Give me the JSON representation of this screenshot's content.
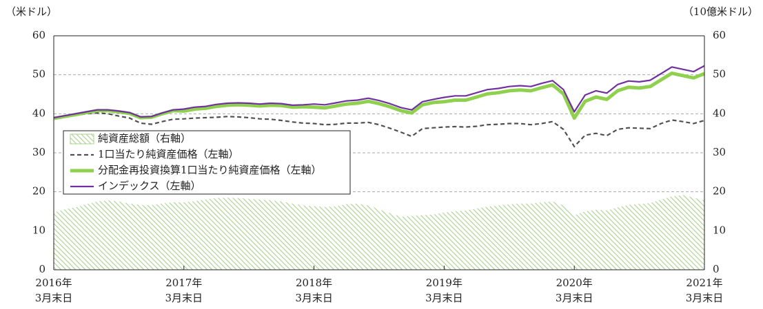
{
  "chart_data": {
    "type": "line",
    "y_label": "（米ドル）",
    "y2_label": "（10億米ドル）",
    "categories": [
      [
        "2016年",
        "3月末日"
      ],
      null,
      null,
      null,
      null,
      null,
      null,
      null,
      null,
      null,
      null,
      null,
      [
        "2017年",
        "3月末日"
      ],
      null,
      null,
      null,
      null,
      null,
      null,
      null,
      null,
      null,
      null,
      null,
      [
        "2018年",
        "3月末日"
      ],
      null,
      null,
      null,
      null,
      null,
      null,
      null,
      null,
      null,
      null,
      null,
      [
        "2019年",
        "3月末日"
      ],
      null,
      null,
      null,
      null,
      null,
      null,
      null,
      null,
      null,
      null,
      null,
      [
        "2020年",
        "3月末日"
      ],
      null,
      null,
      null,
      null,
      null,
      null,
      null,
      null,
      null,
      null,
      null,
      [
        "2021年",
        "3月末日"
      ]
    ],
    "ylim": [
      0,
      60
    ],
    "yticks": [
      0,
      10,
      20,
      30,
      40,
      50,
      60
    ],
    "y2lim": [
      0,
      60
    ],
    "y2ticks": [
      0,
      10,
      20,
      30,
      40,
      50,
      60
    ],
    "grid": true,
    "series": [
      {
        "name": "純資産総額（右軸）",
        "style": "area",
        "axis": "y2",
        "color": "#a9d18e",
        "values": [
          14.7,
          15.5,
          16,
          16.8,
          17.5,
          17.8,
          17.5,
          17,
          16.6,
          16.6,
          17,
          17.3,
          17.3,
          17.6,
          18,
          18.4,
          18.5,
          18.4,
          18.2,
          18,
          17.8,
          17.5,
          17,
          16.5,
          16.3,
          16.1,
          16.3,
          16.8,
          17,
          16.5,
          15.5,
          14.5,
          13.6,
          13.8,
          14,
          14.2,
          14.7,
          15,
          15.2,
          15.7,
          16.2,
          16.5,
          16.8,
          17,
          17,
          17.3,
          17.5,
          16.5,
          14,
          15,
          15.4,
          15.2,
          16,
          16.6,
          16.9,
          17.1,
          18,
          18.8,
          19.2,
          18.5,
          17.8
        ]
      },
      {
        "name": "1口当たり純資産価格（左軸）",
        "style": "dashed",
        "color": "#505050",
        "values": [
          38.8,
          39.2,
          39.6,
          40,
          40.2,
          40,
          39.4,
          38.9,
          37.6,
          37.3,
          38,
          38.6,
          38.7,
          38.9,
          39,
          39.1,
          39.3,
          39.2,
          39,
          38.7,
          38.6,
          38.3,
          37.9,
          37.6,
          37.5,
          37.2,
          37.3,
          37.6,
          37.6,
          37.8,
          37.2,
          36.3,
          35.3,
          34.2,
          36.2,
          36.4,
          36.6,
          36.7,
          36.6,
          36.8,
          37.2,
          37.3,
          37.5,
          37.5,
          37.2,
          37.5,
          38,
          36,
          31.6,
          34.5,
          35,
          34.4,
          36,
          36.4,
          36.3,
          36.2,
          37.5,
          38.4,
          38,
          37.5,
          38.3
        ]
      },
      {
        "name": "分配金再投資換算1口当たり純資産価格（左軸）",
        "style": "thick",
        "color": "#8fd14f",
        "values": [
          38.8,
          39.3,
          39.8,
          40.3,
          40.8,
          40.8,
          40.5,
          40.1,
          39,
          39.1,
          40,
          40.8,
          40.7,
          41.2,
          41.4,
          41.9,
          42.2,
          42.3,
          42.2,
          42,
          42.2,
          42.1,
          41.7,
          41.8,
          41.7,
          41.5,
          42,
          42.5,
          42.7,
          43.2,
          42.6,
          41.8,
          40.8,
          40.2,
          42.3,
          42.9,
          43.1,
          43.5,
          43.5,
          44.3,
          45.1,
          45.4,
          45.9,
          46.1,
          45.9,
          46.7,
          47.4,
          45.1,
          38.9,
          43.2,
          44.3,
          43.7,
          45.9,
          46.8,
          46.6,
          47,
          48.7,
          50.4,
          49.8,
          49.2,
          50.3
        ]
      },
      {
        "name": "インデックス（左軸）",
        "style": "line",
        "color": "#7030a0",
        "values": [
          39,
          39.5,
          40,
          40.5,
          41,
          41,
          40.7,
          40.3,
          39.2,
          39.3,
          40.2,
          41,
          41.2,
          41.7,
          41.9,
          42.4,
          42.7,
          42.8,
          42.7,
          42.5,
          42.7,
          42.6,
          42.2,
          42.3,
          42.5,
          42.3,
          42.8,
          43.3,
          43.5,
          44,
          43.4,
          42.6,
          41.6,
          41,
          43.1,
          43.7,
          44.2,
          44.6,
          44.6,
          45.4,
          46.2,
          46.5,
          47,
          47.2,
          47,
          47.8,
          48.5,
          46.2,
          40.5,
          44.8,
          45.9,
          45.3,
          47.5,
          48.4,
          48.2,
          48.6,
          50.3,
          52,
          51.4,
          50.8,
          52.3
        ]
      }
    ]
  }
}
